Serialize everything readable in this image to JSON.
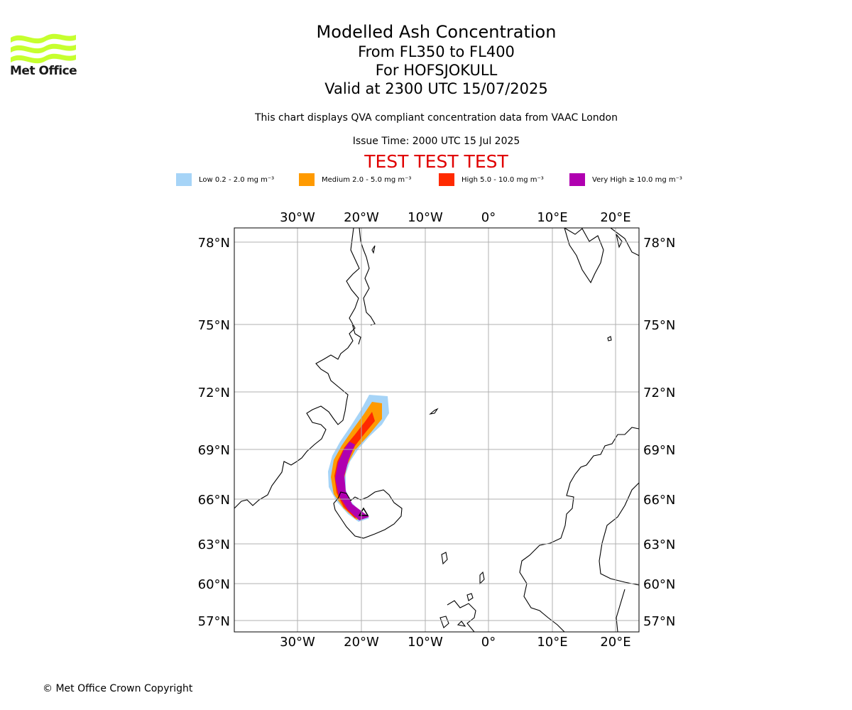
{
  "logo": {
    "name": "Met Office"
  },
  "title": {
    "line1": "Modelled Ash Concentration",
    "line2": "From FL350 to FL400",
    "line3": "For HOFSJOKULL",
    "line4": "Valid at 2300 UTC 15/07/2025"
  },
  "subtitle": "This chart displays QVA compliant concentration data from VAAC London",
  "issue_time": "Issue Time: 2000 UTC 15 Jul 2025",
  "test_banner": "TEST TEST TEST",
  "legend": [
    {
      "label": "Low 0.2 - 2.0 mg m⁻³",
      "color": "#a6d4f7"
    },
    {
      "label": "Medium 2.0 - 5.0 mg m⁻³",
      "color": "#ff9a00"
    },
    {
      "label": "High 5.0 - 10.0 mg m⁻³",
      "color": "#ff2a00"
    },
    {
      "label": "Very High  ≥  10.0 mg m⁻³",
      "color": "#b000b0"
    }
  ],
  "map": {
    "lon_ticks": [
      "30°W",
      "20°W",
      "10°W",
      "0°",
      "10°E",
      "20°E"
    ],
    "lat_ticks": [
      "78°N",
      "75°N",
      "72°N",
      "69°N",
      "66°N",
      "63°N",
      "60°N",
      "57°N"
    ],
    "grid": true,
    "colors": {
      "gridline": "#b0b0b0",
      "coast": "#000000",
      "frame": "#000000"
    }
  },
  "copyright": "© Met Office Crown Copyright"
}
